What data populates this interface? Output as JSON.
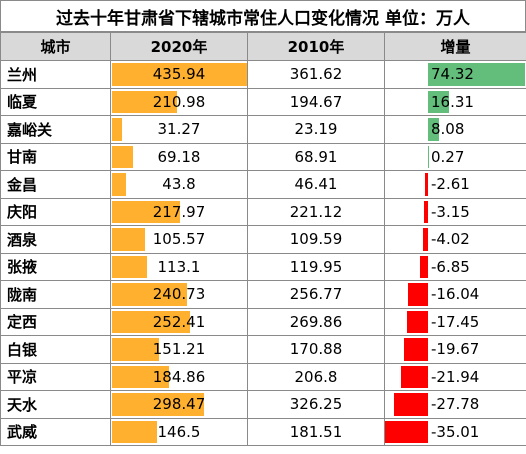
{
  "title": "过去十年甘肃省下辖城市常住人口变化情况     单位：万人",
  "columns": [
    "城市",
    "2020年",
    "2010年",
    "增量"
  ],
  "colors": {
    "pop_bar": "#ffb02e",
    "increase_bar": "#63be7b",
    "decrease_bar": "#ff0000",
    "header_bg": "#d9d9d9"
  },
  "chart_data": {
    "type": "table",
    "title": "过去十年甘肃省下辖城市常住人口变化情况     单位：万人",
    "columns": [
      "城市",
      "2020年",
      "2010年",
      "增量"
    ],
    "rows": [
      {
        "city": "兰州",
        "y2020": "435.94",
        "y2010": "361.62",
        "delta": "74.32"
      },
      {
        "city": "临夏",
        "y2020": "210.98",
        "y2010": "194.67",
        "delta": "16.31"
      },
      {
        "city": "嘉峪关",
        "y2020": "31.27",
        "y2010": "23.19",
        "delta": "8.08"
      },
      {
        "city": "甘南",
        "y2020": "69.18",
        "y2010": "68.91",
        "delta": "0.27"
      },
      {
        "city": "金昌",
        "y2020": "43.8",
        "y2010": "46.41",
        "delta": "-2.61"
      },
      {
        "city": "庆阳",
        "y2020": "217.97",
        "y2010": "221.12",
        "delta": "-3.15"
      },
      {
        "city": "酒泉",
        "y2020": "105.57",
        "y2010": "109.59",
        "delta": "-4.02"
      },
      {
        "city": "张掖",
        "y2020": "113.1",
        "y2010": "119.95",
        "delta": "-6.85"
      },
      {
        "city": "陇南",
        "y2020": "240.73",
        "y2010": "256.77",
        "delta": "-16.04"
      },
      {
        "city": "定西",
        "y2020": "252.41",
        "y2010": "269.86",
        "delta": "-17.45"
      },
      {
        "city": "白银",
        "y2020": "151.21",
        "y2010": "170.88",
        "delta": "-19.67"
      },
      {
        "city": "平凉",
        "y2020": "184.86",
        "y2010": "206.8",
        "delta": "-21.94"
      },
      {
        "city": "天水",
        "y2020": "298.47",
        "y2010": "326.25",
        "delta": "-27.78"
      },
      {
        "city": "武威",
        "y2020": "146.5",
        "y2010": "181.51",
        "delta": "-35.01"
      }
    ]
  }
}
